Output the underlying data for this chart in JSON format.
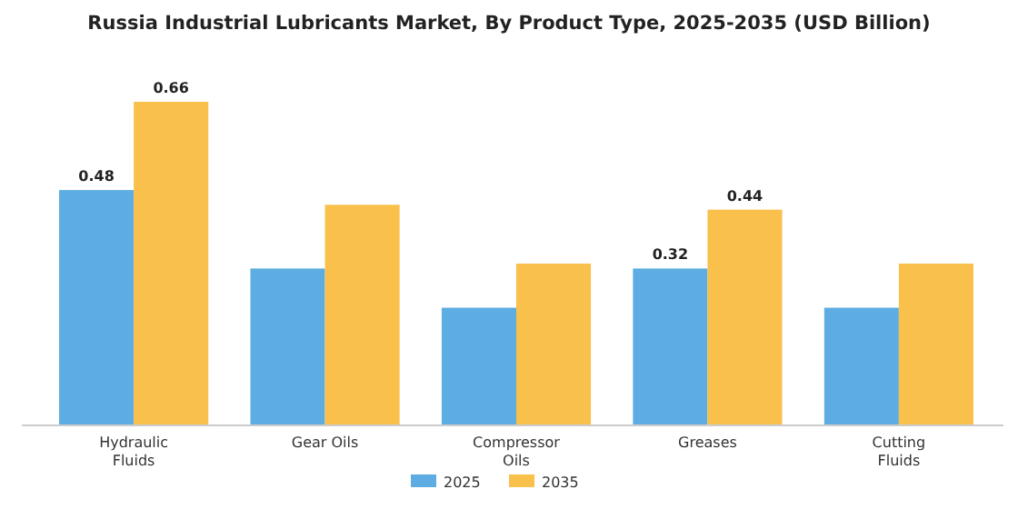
{
  "chart_data": {
    "type": "bar",
    "title": "Russia Industrial Lubricants Market, By Product Type, 2025-2035 (USD Billion)",
    "categories": [
      "Hydraulic Fluids",
      "Gear Oils",
      "Compressor Oils",
      "Greases",
      "Cutting Fluids"
    ],
    "series": [
      {
        "name": "2025",
        "color": "#5dade2",
        "values": [
          0.48,
          0.32,
          0.24,
          0.32,
          0.24
        ],
        "value_labels": [
          "0.48",
          null,
          null,
          "0.32",
          null
        ]
      },
      {
        "name": "2035",
        "color": "#f9c04c",
        "values": [
          0.66,
          0.45,
          0.33,
          0.44,
          0.33
        ],
        "value_labels": [
          "0.66",
          null,
          null,
          "0.44",
          null
        ]
      }
    ],
    "legend": "bottom"
  }
}
